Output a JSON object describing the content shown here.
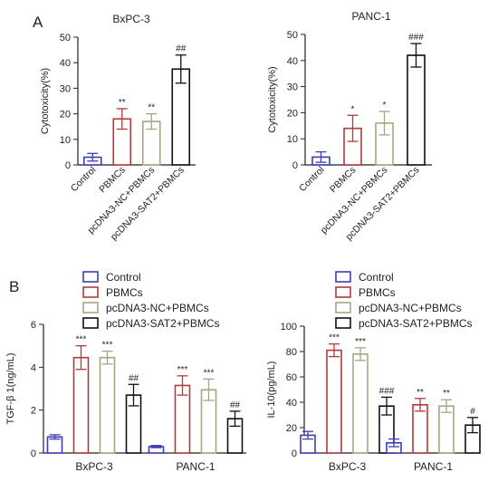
{
  "panel_labels": {
    "a": "A",
    "b": "B"
  },
  "colors": {
    "Control": "#3d3db5",
    "PBMCs": "#b23a3a",
    "pcDNA3-NC+PBMCs": "#a8a582",
    "pcDNA3-SAT2+PBMCs": "#111111"
  },
  "chart_data": [
    {
      "type": "bar",
      "title": "BxPC-3",
      "ylabel": "Cytotoxicity(%)",
      "ylim": [
        0,
        50
      ],
      "yticks": [
        0,
        10,
        20,
        30,
        40,
        50
      ],
      "categories": [
        "Control",
        "PBMCs",
        "pcDNA3-NC+PBMCs",
        "pcDNA3-SAT2+PBMCs"
      ],
      "values": [
        3,
        18,
        17,
        37.5
      ],
      "errors": [
        1.5,
        4,
        3,
        5.5
      ],
      "annotations": [
        "",
        "**",
        "**",
        "##"
      ]
    },
    {
      "type": "bar",
      "title": "PANC-1",
      "ylabel": "Cytotoxicity(%)",
      "ylim": [
        0,
        50
      ],
      "yticks": [
        0,
        10,
        20,
        30,
        40,
        50
      ],
      "categories": [
        "Control",
        "PBMCs",
        "pcDNA3-NC+PBMCs",
        "pcDNA3-SAT2+PBMCs"
      ],
      "values": [
        3,
        14,
        16,
        42
      ],
      "errors": [
        2,
        5,
        4.5,
        4.5
      ],
      "annotations": [
        "",
        "*",
        "*",
        "###"
      ]
    },
    {
      "type": "bar",
      "ylabel": "TGF-β 1(ng/mL)",
      "ylim": [
        0,
        6
      ],
      "yticks": [
        0,
        2,
        4,
        6
      ],
      "categories": [
        "BxPC-3",
        "PANC-1"
      ],
      "legend": [
        "Control",
        "PBMCs",
        "pcDNA3-NC+PBMCs",
        "pcDNA3-SAT2+PBMCs"
      ],
      "series": [
        {
          "name": "Control",
          "values": [
            0.75,
            0.3
          ],
          "errors": [
            0.1,
            0.05
          ],
          "annotations": [
            "",
            ""
          ]
        },
        {
          "name": "PBMCs",
          "values": [
            4.45,
            3.15
          ],
          "errors": [
            0.55,
            0.45
          ],
          "annotations": [
            "***",
            "***"
          ]
        },
        {
          "name": "pcDNA3-NC+PBMCs",
          "values": [
            4.45,
            2.95
          ],
          "errors": [
            0.3,
            0.5
          ],
          "annotations": [
            "***",
            "***"
          ]
        },
        {
          "name": "pcDNA3-SAT2+PBMCs",
          "values": [
            2.7,
            1.6
          ],
          "errors": [
            0.5,
            0.35
          ],
          "annotations": [
            "##",
            "##"
          ]
        }
      ]
    },
    {
      "type": "bar",
      "ylabel": "IL-10(pg/mL)",
      "ylim": [
        0,
        100
      ],
      "yticks": [
        0,
        20,
        40,
        60,
        80,
        100
      ],
      "categories": [
        "BxPC-3",
        "PANC-1"
      ],
      "legend": [
        "Control",
        "PBMCs",
        "pcDNA3-NC+PBMCs",
        "pcDNA3-SAT2+PBMCs"
      ],
      "series": [
        {
          "name": "Control",
          "values": [
            14,
            8
          ],
          "errors": [
            3,
            3
          ],
          "annotations": [
            "",
            ""
          ]
        },
        {
          "name": "PBMCs",
          "values": [
            81,
            38
          ],
          "errors": [
            5,
            5
          ],
          "annotations": [
            "***",
            "**"
          ]
        },
        {
          "name": "pcDNA3-NC+PBMCs",
          "values": [
            78,
            37
          ],
          "errors": [
            5,
            5
          ],
          "annotations": [
            "***",
            "**"
          ]
        },
        {
          "name": "pcDNA3-SAT2+PBMCs",
          "values": [
            37,
            22
          ],
          "errors": [
            7,
            6
          ],
          "annotations": [
            "###",
            "#"
          ]
        }
      ]
    }
  ]
}
